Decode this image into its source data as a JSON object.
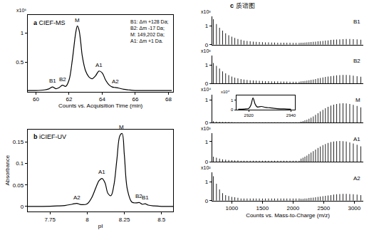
{
  "chart_data": [
    {
      "type": "line",
      "panel": "a",
      "title": "CIEF-MS",
      "x_label": "Counts vs. Acquisition Time (min)",
      "y_unit": "x10⁶",
      "xlim": [
        59.5,
        68.3
      ],
      "xticks": [
        60,
        62,
        64,
        66,
        68
      ],
      "ylim": [
        0,
        1.3
      ],
      "yticks": [
        0.5,
        1
      ],
      "grid": false,
      "color": "#000000",
      "x": [
        59.5,
        60,
        60.5,
        60.8,
        61.0,
        61.2,
        61.4,
        61.6,
        61.8,
        62.0,
        62.2,
        62.4,
        62.5,
        62.6,
        62.7,
        62.8,
        63.0,
        63.2,
        63.4,
        63.6,
        63.8,
        64.0,
        64.2,
        64.4,
        64.6,
        64.8,
        65.0,
        65.3,
        65.6,
        66,
        66.5,
        67,
        67.5,
        68.2
      ],
      "values": [
        0.02,
        0.02,
        0.03,
        0.05,
        0.08,
        0.05,
        0.07,
        0.11,
        0.09,
        0.2,
        0.55,
        1.0,
        1.12,
        1.05,
        0.85,
        0.6,
        0.35,
        0.25,
        0.22,
        0.27,
        0.35,
        0.32,
        0.2,
        0.12,
        0.08,
        0.07,
        0.06,
        0.04,
        0.03,
        0.02,
        0.02,
        0.02,
        0.02,
        0.02
      ],
      "peak_labels": [
        {
          "text": "B1",
          "x": 61.0,
          "y": 0.1
        },
        {
          "text": "B2",
          "x": 61.6,
          "y": 0.13
        },
        {
          "text": "M",
          "x": 62.5,
          "y": 1.14
        },
        {
          "text": "A1",
          "x": 63.8,
          "y": 0.37
        },
        {
          "text": "A2",
          "x": 64.8,
          "y": 0.09
        }
      ],
      "text_box": [
        "B1: Δm +128 Da;",
        "B2: Δm -17 Da;",
        "M: 149,202 Da;",
        "A1: Δm +1 Da."
      ]
    },
    {
      "type": "line",
      "panel": "b",
      "title": "iCIEF-UV",
      "x_label": "pI",
      "y_label": "Absorbance",
      "xlim": [
        7.6,
        8.58
      ],
      "xticks": [
        7.75,
        8,
        8.25,
        8.5
      ],
      "ylim": [
        -0.012,
        0.18
      ],
      "yticks": [
        0,
        0.05,
        0.1,
        0.15
      ],
      "grid": false,
      "color": "#000000",
      "x": [
        7.6,
        7.7,
        7.8,
        7.85,
        7.9,
        7.93,
        7.96,
        8.0,
        8.03,
        8.06,
        8.08,
        8.1,
        8.12,
        8.14,
        8.16,
        8.18,
        8.2,
        8.22,
        8.235,
        8.25,
        8.27,
        8.3,
        8.33,
        8.35,
        8.37,
        8.39,
        8.41,
        8.45,
        8.5,
        8.58
      ],
      "values": [
        0,
        0,
        0.001,
        0.002,
        0.005,
        0.007,
        0.004,
        0.006,
        0.02,
        0.045,
        0.06,
        0.065,
        0.055,
        0.03,
        0.025,
        0.05,
        0.11,
        0.165,
        0.17,
        0.12,
        0.04,
        0.01,
        0.008,
        0.009,
        0.005,
        0.006,
        0.003,
        0.001,
        0,
        0
      ],
      "peak_labels": [
        {
          "text": "A2",
          "x": 7.93,
          "y": 0.01
        },
        {
          "text": "A1",
          "x": 8.1,
          "y": 0.07
        },
        {
          "text": "M",
          "x": 8.23,
          "y": 0.175
        },
        {
          "text": "B2",
          "x": 8.35,
          "y": 0.013
        },
        {
          "text": "B1",
          "x": 8.39,
          "y": 0.01
        }
      ]
    },
    {
      "type": "bar",
      "panel": "c",
      "title": "质谱图",
      "x_label": "Counts vs. Mass-to-Charge (m/z)",
      "xlim": [
        680,
        3150
      ],
      "xticks": [
        1000,
        1500,
        2000,
        2500,
        3000
      ],
      "grid": false,
      "color": "#000000",
      "spectra": [
        {
          "name": "B1",
          "y_unit": "x10³",
          "ylim": [
            0,
            1.5
          ],
          "yticks": [
            0,
            1
          ],
          "x": [
            700,
            750,
            800,
            850,
            900,
            950,
            1000,
            1050,
            1100,
            1150,
            1200,
            1250,
            1300,
            1350,
            1400,
            1450,
            1500,
            1550,
            1600,
            1650,
            1700,
            1750,
            1800,
            1850,
            1900,
            1950,
            2000,
            2050,
            2100,
            2132,
            2162,
            2194,
            2227,
            2261,
            2295,
            2331,
            2368,
            2407,
            2446,
            2487,
            2529,
            2572,
            2618,
            2664,
            2713,
            2763,
            2815,
            2869,
            2926,
            2984,
            3045,
            3108
          ],
          "values": [
            1.35,
            1.1,
            0.9,
            0.75,
            0.6,
            0.5,
            0.42,
            0.36,
            0.3,
            0.26,
            0.22,
            0.2,
            0.18,
            0.16,
            0.15,
            0.14,
            0.13,
            0.12,
            0.12,
            0.11,
            0.11,
            0.1,
            0.1,
            0.1,
            0.1,
            0.1,
            0.09,
            0.09,
            0.09,
            0.1,
            0.1,
            0.11,
            0.12,
            0.13,
            0.14,
            0.15,
            0.16,
            0.18,
            0.19,
            0.2,
            0.22,
            0.23,
            0.25,
            0.26,
            0.27,
            0.28,
            0.29,
            0.3,
            0.3,
            0.29,
            0.28,
            0.26
          ]
        },
        {
          "name": "B2",
          "y_unit": "x10³",
          "ylim": [
            0,
            1.5
          ],
          "yticks": [
            0,
            1
          ],
          "x": [
            700,
            750,
            800,
            850,
            900,
            950,
            1000,
            1050,
            1100,
            1150,
            1200,
            1250,
            1300,
            1350,
            1400,
            1450,
            1500,
            1550,
            1600,
            1650,
            1700,
            1750,
            1800,
            1850,
            1900,
            1950,
            2000,
            2050,
            2100,
            2132,
            2162,
            2194,
            2227,
            2261,
            2295,
            2331,
            2368,
            2407,
            2446,
            2487,
            2529,
            2572,
            2618,
            2664,
            2713,
            2763,
            2815,
            2869,
            2926,
            2984,
            3045,
            3108
          ],
          "values": [
            1.1,
            0.95,
            0.8,
            0.65,
            0.55,
            0.45,
            0.38,
            0.32,
            0.28,
            0.25,
            0.22,
            0.2,
            0.18,
            0.17,
            0.16,
            0.15,
            0.14,
            0.13,
            0.13,
            0.12,
            0.12,
            0.12,
            0.11,
            0.11,
            0.11,
            0.1,
            0.1,
            0.1,
            0.1,
            0.12,
            0.13,
            0.14,
            0.16,
            0.18,
            0.2,
            0.22,
            0.25,
            0.28,
            0.3,
            0.33,
            0.36,
            0.38,
            0.4,
            0.42,
            0.44,
            0.45,
            0.46,
            0.46,
            0.45,
            0.43,
            0.4,
            0.37
          ]
        },
        {
          "name": "M",
          "y_unit": "x10⁴",
          "ylim": [
            0,
            1.25
          ],
          "yticks": [
            0,
            1
          ],
          "x": [
            700,
            750,
            800,
            850,
            900,
            950,
            1000,
            1050,
            1100,
            1150,
            1200,
            1250,
            1300,
            1350,
            1400,
            1450,
            1500,
            1550,
            1600,
            1650,
            1700,
            1750,
            1800,
            1850,
            1900,
            1950,
            2000,
            2050,
            2100,
            2132,
            2162,
            2194,
            2227,
            2261,
            2295,
            2331,
            2368,
            2407,
            2446,
            2487,
            2529,
            2572,
            2618,
            2664,
            2713,
            2763,
            2815,
            2869,
            2926,
            2984,
            3045,
            3108
          ],
          "values": [
            0.06,
            0.05,
            0.04,
            0.035,
            0.03,
            0.03,
            0.025,
            0.02,
            0.02,
            0.02,
            0.02,
            0.02,
            0.02,
            0.02,
            0.02,
            0.02,
            0.02,
            0.02,
            0.02,
            0.02,
            0.02,
            0.02,
            0.02,
            0.02,
            0.02,
            0.02,
            0.02,
            0.02,
            0.02,
            0.05,
            0.07,
            0.1,
            0.13,
            0.17,
            0.22,
            0.28,
            0.35,
            0.42,
            0.5,
            0.57,
            0.64,
            0.7,
            0.76,
            0.8,
            0.83,
            0.85,
            0.86,
            0.85,
            0.83,
            0.79,
            0.74,
            0.68
          ],
          "inset": {
            "type": "line",
            "y_unit": "x10⁴",
            "xlim": [
              2914,
              2942
            ],
            "xticks": [
              2920,
              2940
            ],
            "ylim": [
              0,
              1.5
            ],
            "yticks": [
              0,
              1
            ],
            "x": [
              2915,
              2918,
              2920,
              2921,
              2922,
              2923,
              2924,
              2926,
              2928,
              2930,
              2932,
              2935,
              2938,
              2940
            ],
            "values": [
              0.05,
              0.08,
              0.15,
              0.5,
              1.25,
              0.6,
              0.3,
              0.35,
              0.25,
              0.2,
              0.15,
              0.1,
              0.08,
              0.06
            ]
          }
        },
        {
          "name": "A1",
          "y_unit": "x10³",
          "ylim": [
            0,
            1.4
          ],
          "yticks": [
            0,
            1
          ],
          "x": [
            700,
            750,
            800,
            850,
            900,
            950,
            1000,
            1050,
            1100,
            1150,
            1200,
            1250,
            1300,
            1350,
            1400,
            1450,
            1500,
            1550,
            1600,
            1650,
            1700,
            1750,
            1800,
            1850,
            1900,
            1950,
            2000,
            2050,
            2100,
            2132,
            2162,
            2194,
            2227,
            2261,
            2295,
            2331,
            2368,
            2407,
            2446,
            2487,
            2529,
            2572,
            2618,
            2664,
            2713,
            2763,
            2815,
            2869,
            2926,
            2984,
            3045,
            3108
          ],
          "values": [
            0.25,
            0.2,
            0.15,
            0.12,
            0.1,
            0.08,
            0.07,
            0.06,
            0.06,
            0.05,
            0.05,
            0.05,
            0.05,
            0.05,
            0.05,
            0.05,
            0.05,
            0.05,
            0.05,
            0.05,
            0.05,
            0.05,
            0.05,
            0.05,
            0.05,
            0.05,
            0.05,
            0.05,
            0.05,
            0.15,
            0.2,
            0.25,
            0.3,
            0.38,
            0.45,
            0.52,
            0.6,
            0.68,
            0.75,
            0.82,
            0.88,
            0.93,
            0.97,
            1.0,
            1.02,
            1.03,
            1.02,
            1.0,
            0.96,
            0.9,
            0.84,
            0.76
          ]
        },
        {
          "name": "A2",
          "y_unit": "x10²",
          "ylim": [
            0,
            1.5
          ],
          "yticks": [
            0,
            1
          ],
          "x": [
            700,
            750,
            800,
            850,
            900,
            950,
            1000,
            1050,
            1100,
            1150,
            1200,
            1250,
            1300,
            1350,
            1400,
            1450,
            1500,
            1550,
            1600,
            1650,
            1700,
            1750,
            1800,
            1850,
            1900,
            1950,
            2000,
            2050,
            2100,
            2132,
            2162,
            2194,
            2227,
            2261,
            2295,
            2331,
            2368,
            2407,
            2446,
            2487,
            2529,
            2572,
            2618,
            2664,
            2713,
            2763,
            2815,
            2869,
            2926,
            2984,
            3045,
            3108
          ],
          "values": [
            1.3,
            0.9,
            0.6,
            0.4,
            0.3,
            0.25,
            0.2,
            0.18,
            0.15,
            0.12,
            0.12,
            0.12,
            0.12,
            0.12,
            0.12,
            0.12,
            0.12,
            0.12,
            0.12,
            0.12,
            0.12,
            0.12,
            0.12,
            0.12,
            0.12,
            0.12,
            0.12,
            0.12,
            0.12,
            0.1,
            0.1,
            0.12,
            0.12,
            0.14,
            0.15,
            0.16,
            0.18,
            0.2,
            0.22,
            0.24,
            0.26,
            0.28,
            0.3,
            0.32,
            0.34,
            0.35,
            0.36,
            0.36,
            0.35,
            0.34,
            0.32,
            0.3
          ]
        }
      ]
    }
  ]
}
